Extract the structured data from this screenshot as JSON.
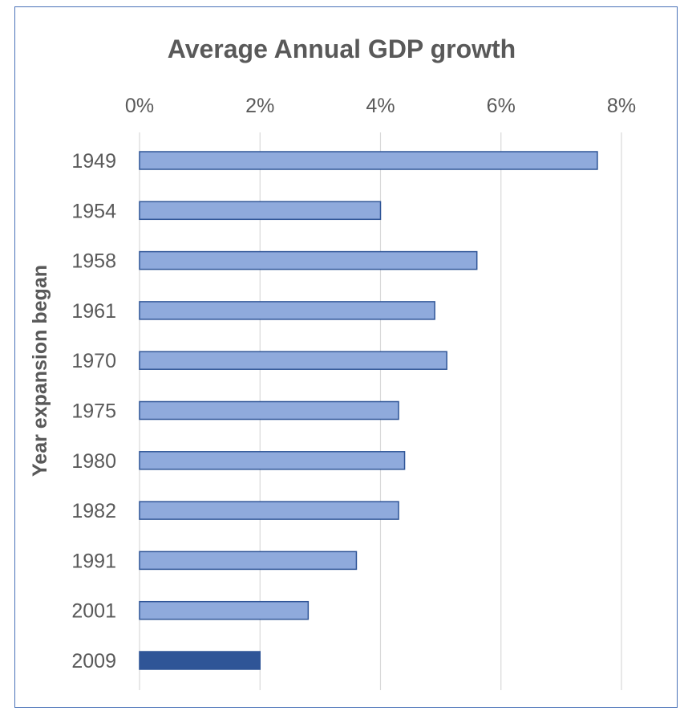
{
  "chart_data": {
    "type": "bar",
    "orientation": "horizontal",
    "title": "Average Annual GDP growth",
    "xlabel": "",
    "ylabel": "Year expansion began",
    "categories": [
      "1949",
      "1954",
      "1958",
      "1961",
      "1970",
      "1975",
      "1980",
      "1982",
      "1991",
      "2001",
      "2009"
    ],
    "values": [
      7.6,
      4.0,
      5.6,
      4.9,
      5.1,
      4.3,
      4.4,
      4.3,
      3.6,
      2.8,
      2.0
    ],
    "value_unit": "%",
    "xlim": [
      0,
      8
    ],
    "x_ticks": [
      "0%",
      "2%",
      "4%",
      "6%",
      "8%"
    ],
    "x_axis_position": "top",
    "grid": true,
    "colors": {
      "bar": "#8faadc",
      "bar_border": "#2f5597",
      "highlight_bar": "#2f5597",
      "grid": "#d9d9d9",
      "text": "#595959",
      "frame": "#4a72b8"
    },
    "highlight_category": "2009"
  }
}
